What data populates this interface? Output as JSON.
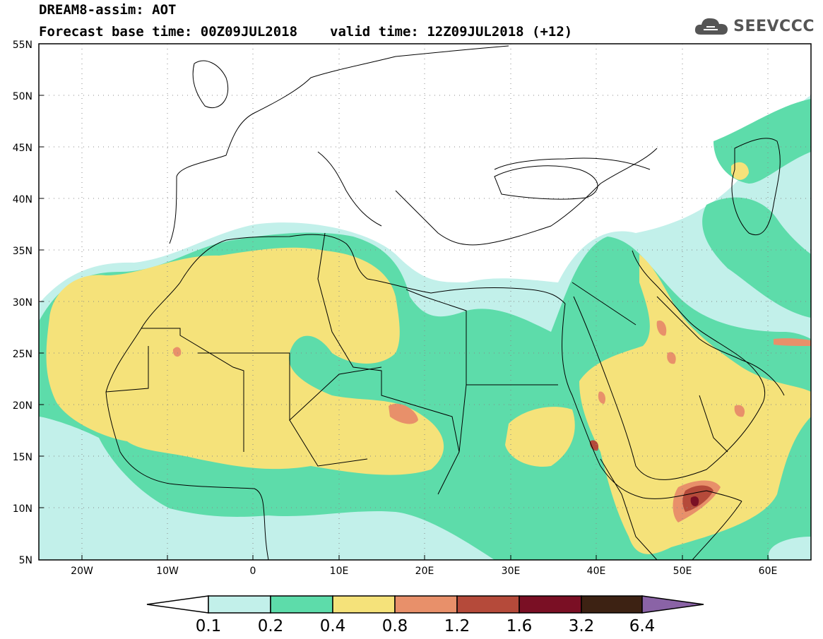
{
  "header": {
    "title": "DREAM8-assim: AOT",
    "base_time_label": "Forecast base time: 00Z09JUL2018",
    "valid_time_label": "valid time: 12Z09JUL2018 (+12)"
  },
  "logo": {
    "text": "SEEVCCC",
    "icon": "cloud-icon"
  },
  "map": {
    "lon_range": [
      -25,
      65
    ],
    "lat_range": [
      5,
      55
    ],
    "lat_ticks": [
      "5N",
      "10N",
      "15N",
      "20N",
      "25N",
      "30N",
      "35N",
      "40N",
      "45N",
      "50N",
      "55N"
    ],
    "lon_ticks": [
      "20W",
      "10W",
      "0",
      "10E",
      "20E",
      "30E",
      "40E",
      "50E",
      "60E"
    ]
  },
  "colorbar": {
    "levels": [
      "0.1",
      "0.2",
      "0.4",
      "0.8",
      "1.2",
      "1.6",
      "3.2",
      "6.4"
    ],
    "colors": [
      "#c2f0ea",
      "#5ddcaa",
      "#f5e27a",
      "#e8906a",
      "#b54a3a",
      "#7a0f24",
      "#3d2213",
      "#8a63a6"
    ],
    "under_color": "#ffffff"
  }
}
